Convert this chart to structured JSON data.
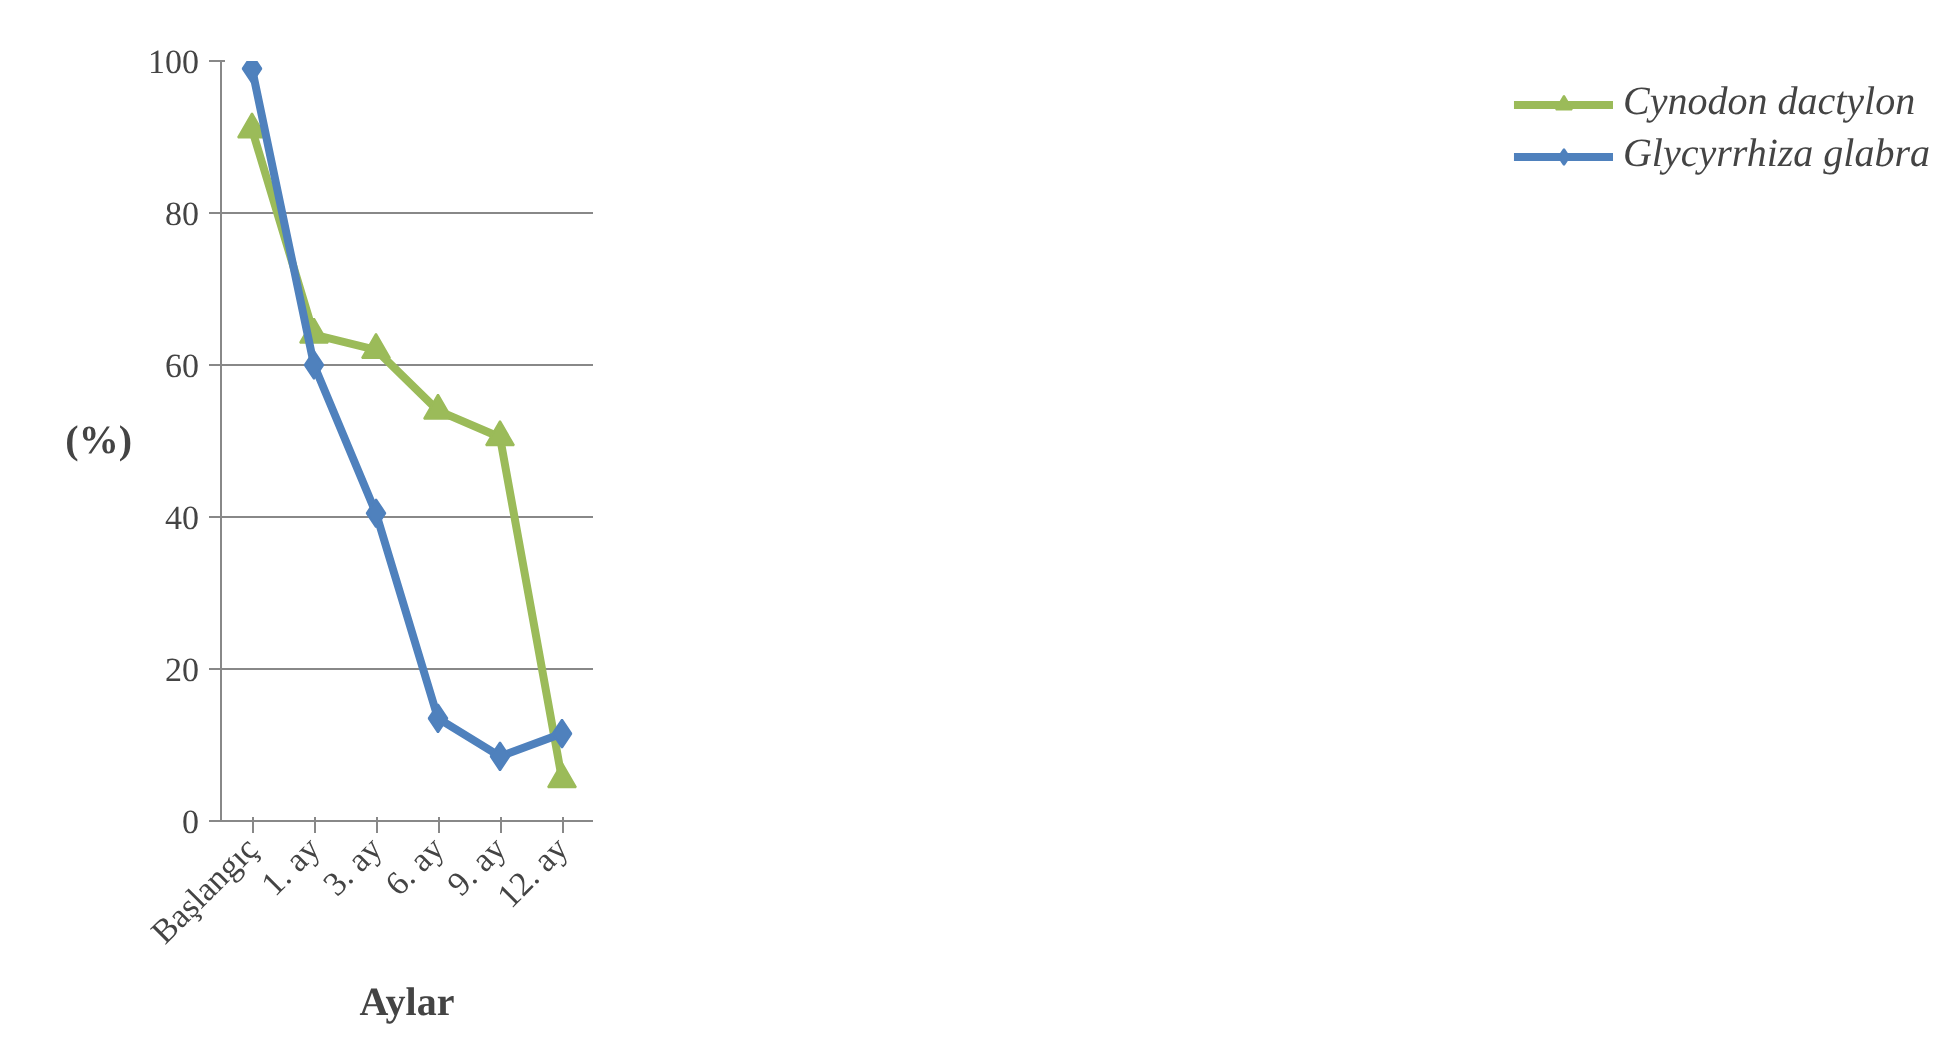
{
  "chart_data": {
    "type": "line",
    "xlabel": "Aylar",
    "ylabel": "(%)",
    "categories": [
      "Başlangıç",
      "1. ay",
      "3. ay",
      "6. ay",
      "9. ay",
      "12. ay"
    ],
    "series": [
      {
        "name": "Cynodon dactylon",
        "color": "#9bbb59",
        "marker": "triangle",
        "values": [
          91,
          64,
          62,
          54,
          50.5,
          5.5
        ]
      },
      {
        "name": "Glycyrrhiza glabra",
        "color": "#4f81bd",
        "marker": "diamond",
        "values": [
          99,
          60,
          40.5,
          13.5,
          8.5,
          11.5
        ]
      }
    ],
    "ylim": [
      0,
      100
    ],
    "yticks": [
      0,
      20,
      40,
      60,
      80,
      100
    ],
    "grid": "y",
    "legend": "right",
    "line_style": "solid"
  }
}
